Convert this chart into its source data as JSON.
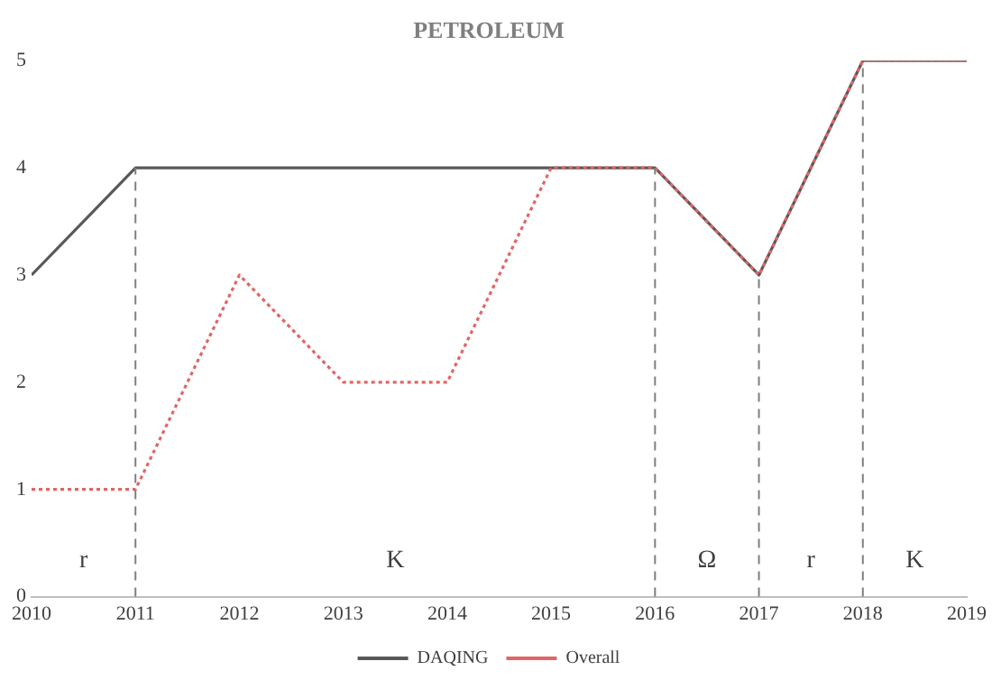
{
  "chart_data": {
    "type": "line",
    "title": "PETROLEUM",
    "x": [
      2010,
      2011,
      2012,
      2013,
      2014,
      2015,
      2016,
      2017,
      2018,
      2019
    ],
    "series": [
      {
        "name": "DAQING",
        "color": "#595959",
        "line_style": "solid",
        "values": [
          3,
          4,
          4,
          4,
          4,
          4,
          4,
          3,
          5,
          5
        ]
      },
      {
        "name": "Overall",
        "color": "#e06666",
        "line_style": "dotted",
        "values": [
          1,
          1,
          3,
          2,
          2,
          4,
          4,
          3,
          5,
          5
        ]
      }
    ],
    "xlim": [
      2010,
      2019
    ],
    "xticks": [
      2010,
      2011,
      2012,
      2013,
      2014,
      2015,
      2016,
      2017,
      2018,
      2019
    ],
    "ylim": [
      0,
      5
    ],
    "yticks": [
      0,
      1,
      2,
      3,
      4,
      5
    ],
    "grid": false,
    "legend": "bottom",
    "marker": "none",
    "ref_lines": [
      {
        "axis": "x",
        "value": 2011,
        "color": "#7f7f7f",
        "line_style": "dashed"
      },
      {
        "axis": "x",
        "value": 2016,
        "color": "#7f7f7f",
        "line_style": "dashed"
      },
      {
        "axis": "x",
        "value": 2017,
        "color": "#7f7f7f",
        "line_style": "dashed"
      },
      {
        "axis": "x",
        "value": 2018,
        "color": "#7f7f7f",
        "line_style": "dashed"
      }
    ],
    "annotations": [
      "r",
      "K",
      "Ω",
      "r",
      "K"
    ]
  }
}
